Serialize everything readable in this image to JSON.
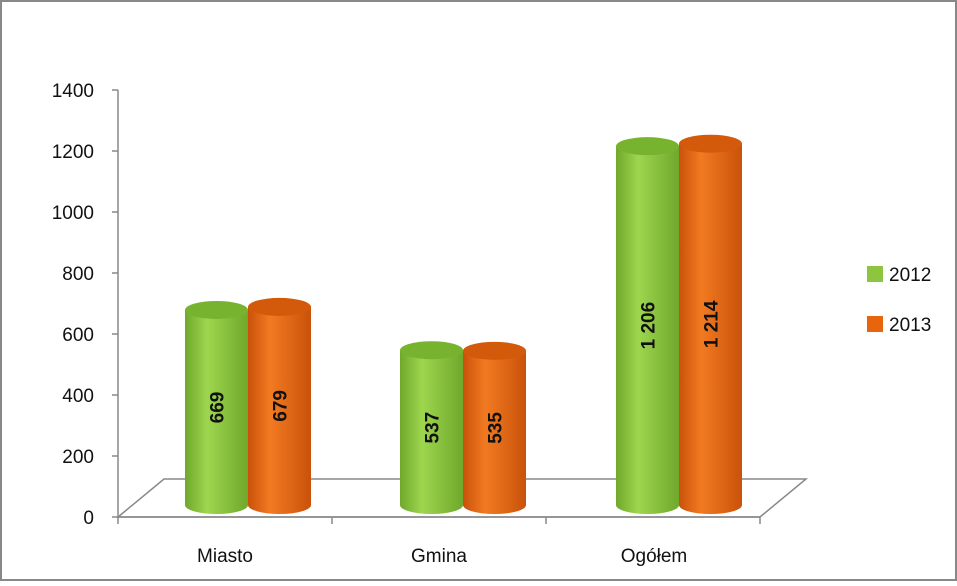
{
  "chart_data": {
    "type": "bar",
    "style": "3d-cylinder",
    "categories": [
      "Miasto",
      "Gmina",
      "Ogółem"
    ],
    "series": [
      {
        "name": "2012",
        "values": [
          669,
          537,
          1206
        ],
        "labels": [
          "669",
          "537",
          "1 206"
        ],
        "color": "#8cc63e"
      },
      {
        "name": "2013",
        "values": [
          679,
          535,
          1214
        ],
        "labels": [
          "679",
          "535",
          "1 214"
        ],
        "color": "#e8650e"
      }
    ],
    "yticks": [
      "0",
      "200",
      "400",
      "600",
      "800",
      "1000",
      "1200",
      "1400"
    ],
    "ylim": [
      0,
      1400
    ],
    "grid": false,
    "legend_position": "right"
  }
}
